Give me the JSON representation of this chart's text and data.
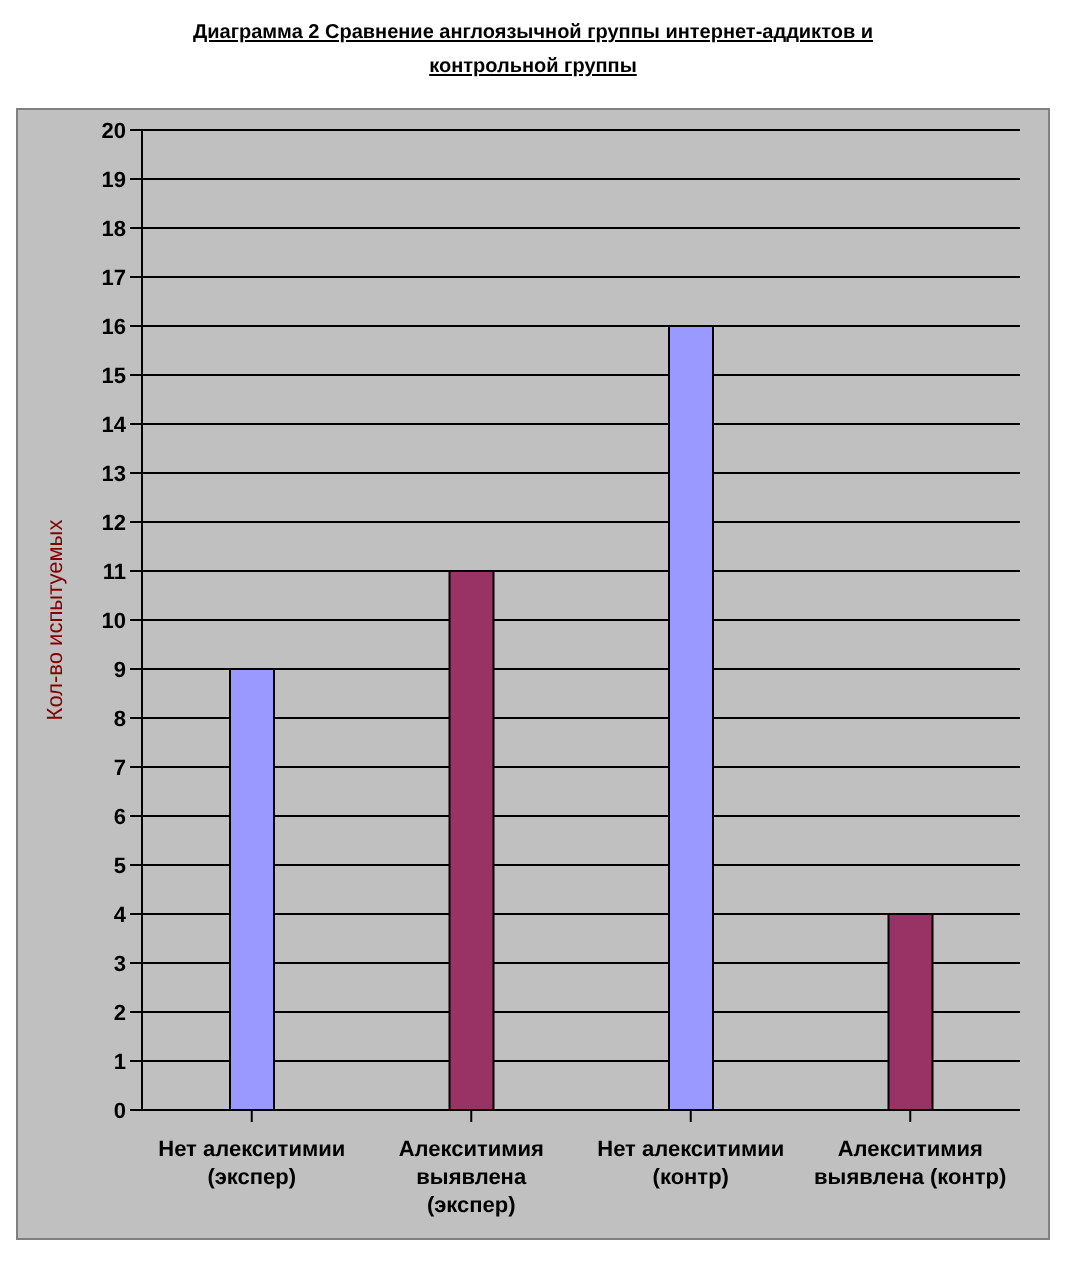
{
  "chart_data": {
    "type": "bar",
    "title": "Диаграмма 2 Сравнение англоязычной группы интернет-аддиктов и контрольной группы",
    "ylabel": "Кол-во испытуемых",
    "categories": [
      "Нет алекситимии (экспер)",
      "Алекситимия выявлена (экспер)",
      "Нет алекситимии (контр)",
      "Алекситимия выявлена (контр)"
    ],
    "values": [
      9,
      11,
      16,
      4
    ],
    "colors": [
      "#9999ff",
      "#993366",
      "#9999ff",
      "#993366"
    ],
    "ylim": [
      0,
      20
    ],
    "yticks": [
      0,
      1,
      2,
      3,
      4,
      5,
      6,
      7,
      8,
      9,
      10,
      11,
      12,
      13,
      14,
      15,
      16,
      17,
      18,
      19,
      20
    ],
    "grid": "y"
  }
}
